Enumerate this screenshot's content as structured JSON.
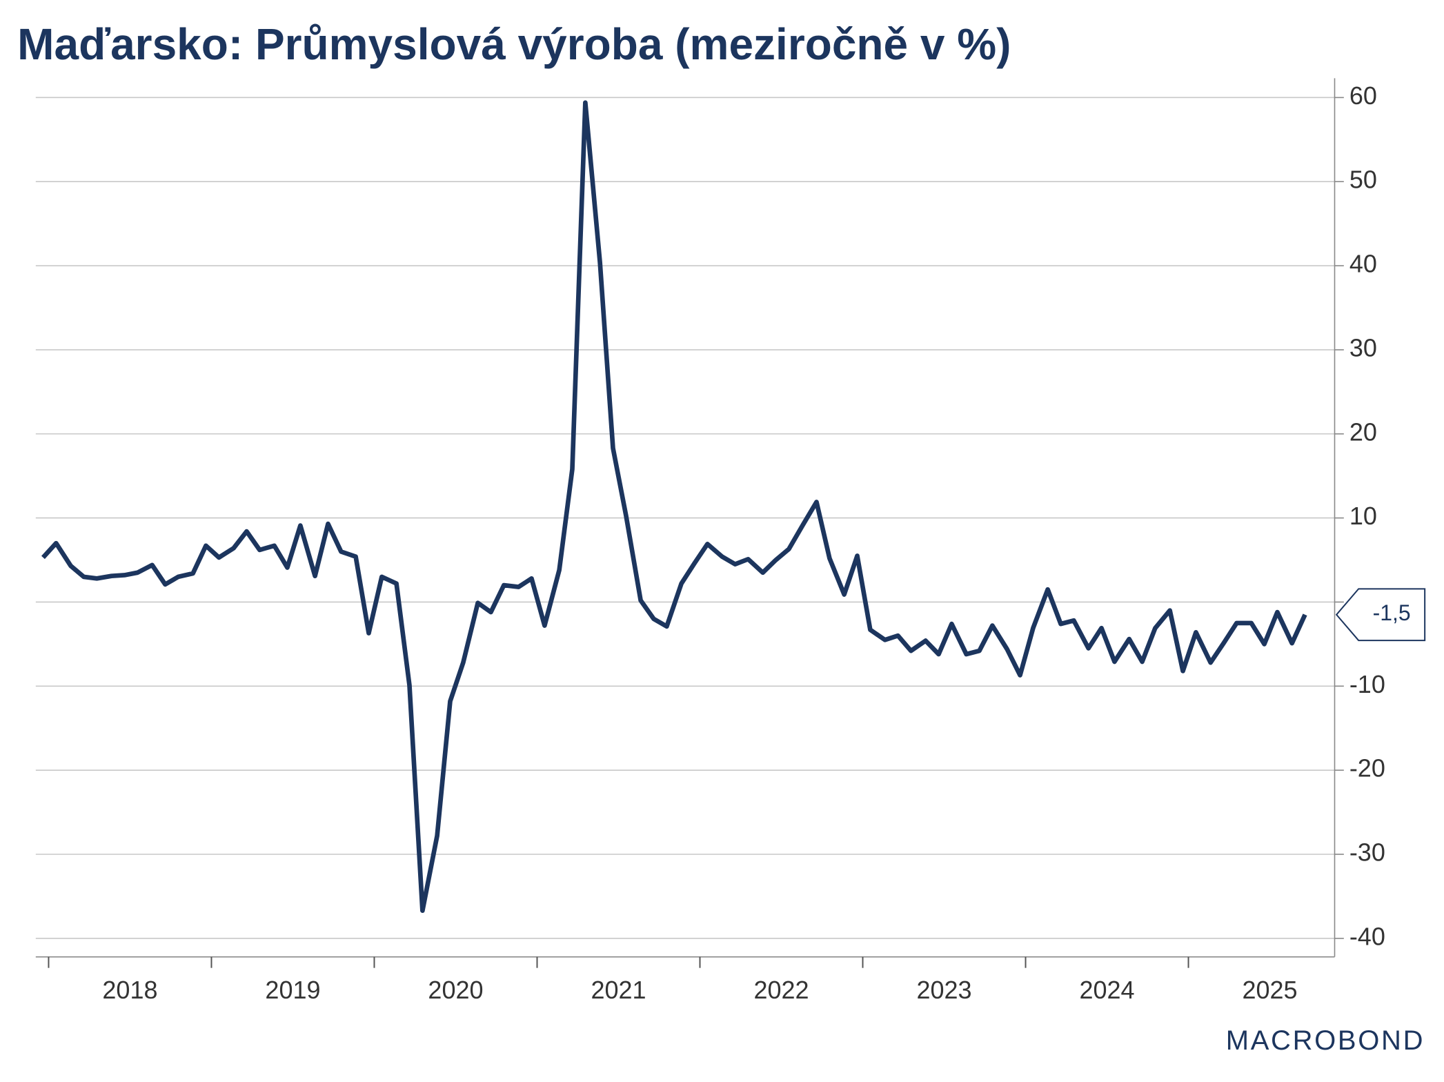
{
  "chart_data": {
    "type": "line",
    "title": "Maďarsko: Průmyslová výroba (meziročně v %)",
    "source": "MACROBOND",
    "x": [
      2018.0,
      2018.08,
      2018.17,
      2018.25,
      2018.33,
      2018.42,
      2018.5,
      2018.58,
      2018.67,
      2018.75,
      2018.83,
      2018.92,
      2019.0,
      2019.08,
      2019.17,
      2019.25,
      2019.33,
      2019.42,
      2019.5,
      2019.58,
      2019.67,
      2019.75,
      2019.83,
      2019.92,
      2020.0,
      2020.08,
      2020.17,
      2020.25,
      2020.33,
      2020.42,
      2020.5,
      2020.58,
      2020.67,
      2020.75,
      2020.83,
      2020.92,
      2021.0,
      2021.08,
      2021.17,
      2021.25,
      2021.33,
      2021.42,
      2021.5,
      2021.58,
      2021.67,
      2021.75,
      2021.83,
      2021.92,
      2022.0,
      2022.08,
      2022.17,
      2022.25,
      2022.33,
      2022.42,
      2022.5,
      2022.58,
      2022.67,
      2022.75,
      2022.83,
      2022.92,
      2023.0,
      2023.08,
      2023.17,
      2023.25,
      2023.33,
      2023.42,
      2023.5,
      2023.58,
      2023.67,
      2023.75,
      2023.83,
      2023.92,
      2024.0,
      2024.08,
      2024.17,
      2024.25,
      2024.33,
      2024.42,
      2024.5,
      2024.58,
      2024.67,
      2024.75,
      2024.83,
      2024.92,
      2025.0,
      2025.08,
      2025.17,
      2025.25,
      2025.33,
      2025.42,
      2025.5,
      2025.58,
      2025.67,
      2025.75
    ],
    "series": [
      {
        "color": "#1c355e",
        "values": [
          5.3,
          7.0,
          4.3,
          3.0,
          2.8,
          3.1,
          3.2,
          3.5,
          4.4,
          2.1,
          3.0,
          3.4,
          6.7,
          5.3,
          6.4,
          8.4,
          6.2,
          6.7,
          4.1,
          9.1,
          3.1,
          9.3,
          6.0,
          5.4,
          -3.7,
          3.0,
          2.2,
          -9.9,
          -36.7,
          -27.8,
          -11.8,
          -7.2,
          -0.1,
          -1.2,
          2.0,
          1.8,
          2.8,
          -2.8,
          3.8,
          15.8,
          59.4,
          40.4,
          18.3,
          10.3,
          0.2,
          -2.0,
          -2.9,
          2.2,
          4.6,
          6.9,
          5.4,
          4.5,
          5.1,
          3.5,
          5.0,
          6.3,
          9.3,
          11.9,
          5.2,
          0.9,
          5.5,
          -3.3,
          -4.5,
          -4.0,
          -5.8,
          -4.6,
          -6.2,
          -2.6,
          -6.2,
          -5.8,
          -2.8,
          -5.6,
          -8.7,
          -3.1,
          1.5,
          -2.6,
          -2.2,
          -5.5,
          -3.1,
          -7.1,
          -4.4,
          -7.1,
          -3.1,
          -1.0,
          -8.2,
          -3.6,
          -7.2,
          -4.9,
          -2.5,
          -2.5,
          -5.0,
          -1.2,
          -4.9,
          -1.5
        ],
        "value_labels": [
          null,
          null,
          null,
          null,
          null,
          null,
          null,
          null,
          null,
          null,
          null,
          null,
          null,
          null,
          null,
          null,
          null,
          null,
          null,
          null,
          null,
          null,
          null,
          null,
          null,
          null,
          null,
          null,
          null,
          null,
          null,
          null,
          null,
          null,
          null,
          null,
          null,
          null,
          null,
          null,
          null,
          null,
          null,
          null,
          null,
          null,
          null,
          null,
          null,
          null,
          null,
          null,
          null,
          null,
          null,
          null,
          null,
          null,
          null,
          null,
          null,
          null,
          null,
          null,
          null,
          null,
          null,
          null,
          null,
          null,
          null,
          null,
          null,
          null,
          null,
          null,
          null,
          null,
          null,
          null,
          null,
          null,
          null,
          null,
          null,
          null,
          null,
          null,
          null,
          null,
          null,
          null,
          null,
          "-1,5"
        ]
      }
    ],
    "xlim": [
      2017.955,
      2025.932
    ],
    "xticks": [
      2018,
      2019,
      2020,
      2021,
      2022,
      2023,
      2024,
      2025
    ],
    "ylim": [
      -42.2,
      62.3
    ],
    "yticks": [
      -40,
      -30,
      -20,
      -10,
      {
        "value": 0,
        "label": null
      },
      10,
      20,
      30,
      40,
      50,
      60
    ],
    "grid": true
  }
}
